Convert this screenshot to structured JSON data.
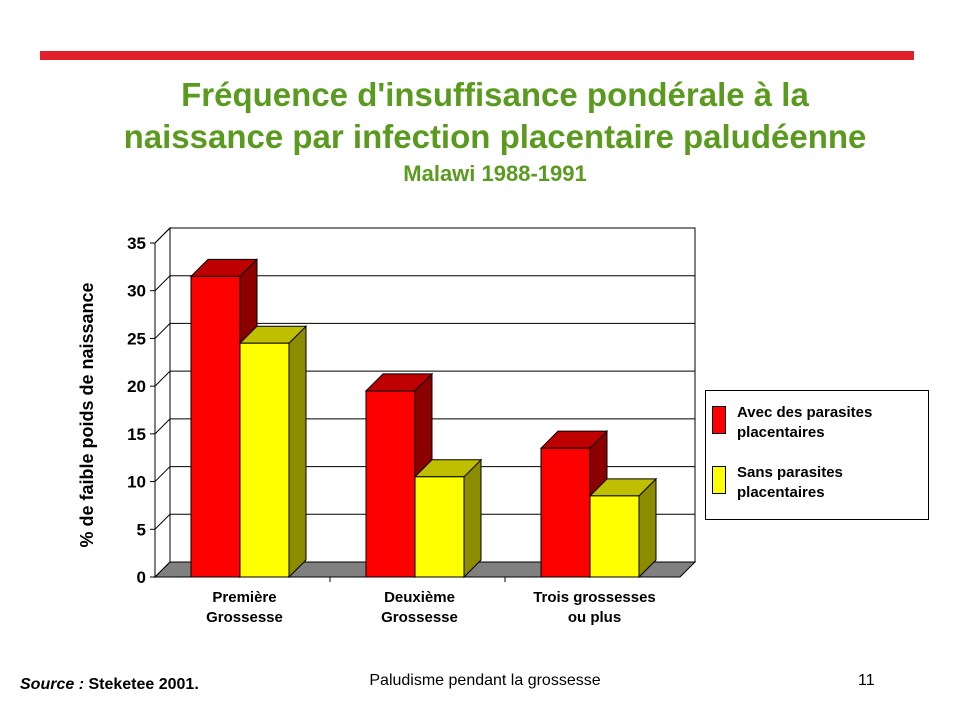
{
  "slide": {
    "title_line1": "Fréquence d'insuffisance pondérale à la",
    "title_line2": "naissance par infection placentaire paludéenne",
    "subtitle": "Malawi 1988-1991",
    "source_label": "Source :",
    "source_text": "Steketee 2001.",
    "footer": "Paludisme pendant la grossesse",
    "page_number": "11"
  },
  "colors": {
    "rule": "#e0202a",
    "title": "#5a9a1e",
    "series_with": "#ff0000",
    "series_without": "#ffff00"
  },
  "chart_data": {
    "type": "bar",
    "title": "Fréquence d'insuffisance pondérale à la naissance par infection placentaire paludéenne",
    "subtitle": "Malawi 1988-1991",
    "xlabel": "",
    "ylabel": "% de faible poids de naissance",
    "ylim": [
      0,
      35
    ],
    "yticks": [
      "0",
      "5",
      "10",
      "15",
      "20",
      "25",
      "30",
      "35"
    ],
    "grid": true,
    "categories": [
      [
        "Première",
        "Grossesse"
      ],
      [
        "Deuxième",
        "Grossesse"
      ],
      [
        "Trois grossesses",
        "ou plus"
      ]
    ],
    "series": [
      {
        "name": "Avec des parasites placentaires",
        "values": [
          31.5,
          19.5,
          13.5
        ]
      },
      {
        "name": "Sans parasites placentaires",
        "values": [
          24.5,
          10.5,
          8.5
        ]
      }
    ],
    "legend_position": "right"
  }
}
